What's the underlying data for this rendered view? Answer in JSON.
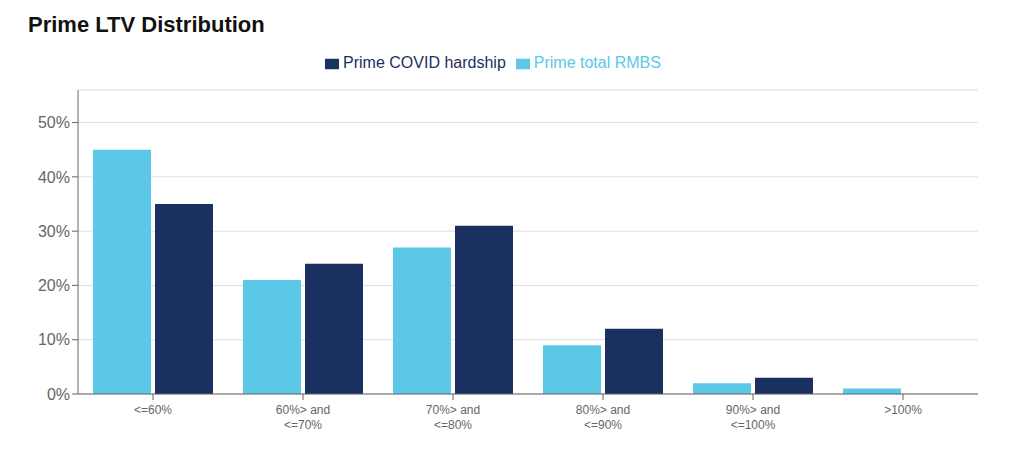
{
  "chart_data": {
    "type": "bar",
    "title": "Prime LTV Distribution",
    "categories": [
      "<=60%",
      "60%> and\n<=70%",
      "70%> and\n<=80%",
      "80%> and\n<=90%",
      "90%> and\n<=100%",
      ">100%"
    ],
    "series": [
      {
        "name": "Prime total RMBS",
        "color": "#5bc8e8",
        "values": [
          0.45,
          0.21,
          0.27,
          0.09,
          0.02,
          0.01
        ]
      },
      {
        "name": "Prime COVID hardship",
        "color": "#1a3060",
        "values": [
          0.35,
          0.24,
          0.31,
          0.12,
          0.03,
          0.0
        ]
      }
    ],
    "ylim": [
      0,
      0.56
    ],
    "yticks": [
      {
        "value": 0.0,
        "label": "0%"
      },
      {
        "value": 0.1,
        "label": "10%"
      },
      {
        "value": 0.2,
        "label": "20%"
      },
      {
        "value": 0.3,
        "label": "30%"
      },
      {
        "value": 0.4,
        "label": "40%"
      },
      {
        "value": 0.5,
        "label": "50%"
      }
    ],
    "grid": true,
    "legend": "top"
  }
}
